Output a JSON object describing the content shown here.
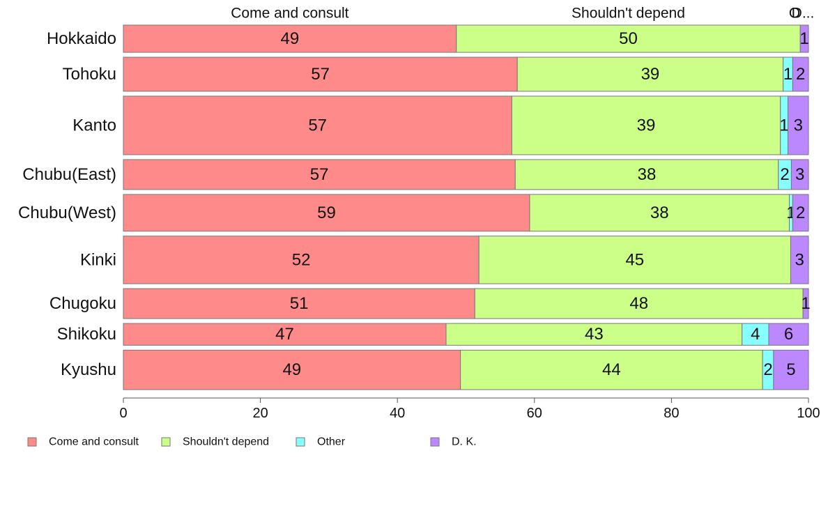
{
  "chart_data": {
    "type": "bar",
    "orientation": "horizontal",
    "stacked": true,
    "categories": [
      "Hokkaido",
      "Tohoku",
      "Kanto",
      "Chubu(East)",
      "Chubu(West)",
      "Kinki",
      "Chugoku",
      "Shikoku",
      "Kyushu"
    ],
    "bar_width_weights": [
      40,
      50,
      86,
      44,
      54,
      70,
      44,
      32,
      58
    ],
    "series": [
      {
        "name": "Come and consult",
        "color": "#FF8A8A",
        "values": [
          48.6,
          57.5,
          56.7,
          57.2,
          59.3,
          51.9,
          51.3,
          47.1,
          49.2
        ]
      },
      {
        "name": "Shouldn't depend",
        "color": "#CCFF88",
        "values": [
          50.2,
          38.8,
          39.2,
          38.4,
          37.9,
          45.5,
          47.9,
          43.2,
          44.1
        ]
      },
      {
        "name": "Other",
        "color": "#88FFFF",
        "values": [
          0.0,
          1.4,
          1.1,
          1.9,
          0.5,
          0.0,
          0.0,
          3.9,
          1.6
        ]
      },
      {
        "name": "D. K.",
        "color": "#BB88FF",
        "values": [
          1.2,
          2.3,
          3.0,
          2.5,
          2.3,
          2.6,
          0.8,
          5.8,
          5.1
        ]
      }
    ],
    "data_labels": [
      [
        "49",
        "57",
        "57",
        "57",
        "59",
        "52",
        "51",
        "47",
        "49"
      ],
      [
        "50",
        "39",
        "39",
        "38",
        "38",
        "45",
        "48",
        "43",
        "44"
      ],
      [
        "",
        "1",
        "1",
        "2",
        "1",
        "",
        "",
        "4",
        "2"
      ],
      [
        "1",
        "2",
        "3",
        "3",
        "2",
        "3",
        "1",
        "6",
        "5"
      ]
    ],
    "top_labels": [
      "Come and consult",
      "Shouldn't depend",
      "O",
      "D..."
    ],
    "xlim": [
      0,
      100
    ],
    "xticks": [
      "0",
      "20",
      "40",
      "60",
      "80",
      "100"
    ],
    "grid": false,
    "legend_position": "bottom-left"
  }
}
